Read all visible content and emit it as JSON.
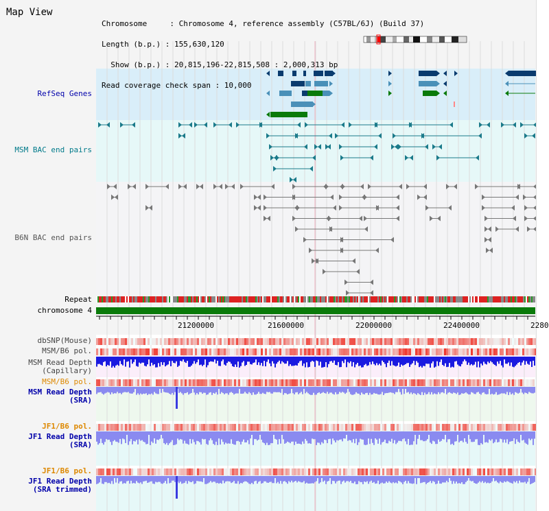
{
  "page_title": "Map View",
  "header": {
    "line1": "Chromosome     : Chromosome 4, reference assembly (C57BL/6J) (Build 37)",
    "line2": "Length (b.p.) : 155,630,120",
    "line3": "  Show (b.p.) : 20,815,196-22,815,508 : 2,000,313 bp",
    "line4": "Read coverage check span : 10,000"
  },
  "tracks": {
    "refseq": "RefSeq Genes",
    "msm_bac": "MSM BAC end pairs",
    "b6n_bac": "B6N BAC end pairs",
    "repeat": "Repeat",
    "chromosome": "chromosome 4",
    "dbsnp": "dbSNP(Mouse)",
    "msm_pol1": "MSM/B6 pol.",
    "msm_depth_cap_1": "MSM Read Depth",
    "msm_depth_cap_2": "(Capillary)",
    "msm_pol2": "MSM/B6 pol.",
    "msm_depth_sra_1": "MSM Read Depth",
    "msm_depth_sra_2": "(SRA)",
    "jf1_pol1": "JF1/B6 pol.",
    "jf1_depth_1": "JF1 Read Depth",
    "jf1_depth_2": "(SRA)",
    "jf1_pol2": "JF1/B6 pol.",
    "jf1_depth_trim_1": "JF1 Read Depth",
    "jf1_depth_trim_2": "(SRA trimmed)"
  },
  "axis": {
    "ticks": [
      "21200000",
      "21600000",
      "22000000",
      "22400000",
      "2280"
    ]
  },
  "colors": {
    "refseq_bg": "#d9eef9",
    "msm_bac_bg": "#e6f8f8",
    "b6n_bac_bg": "#f4f4f6",
    "gene_dark": "#0a3b6e",
    "gene_mid": "#4a90b8",
    "gene_green": "#0a7a0a",
    "msm_bac": "#1a7a8a",
    "b6n_bac": "#777777",
    "repeat_red": "#dd2222",
    "chrom_green": "#0a7a0a",
    "depth_blue": "#1a1ae0",
    "depth_light": "#8a8af0",
    "pol_red": "#ee3333",
    "label_blue": "#0000aa",
    "label_teal": "#007a8a",
    "label_orange": "#dd8800"
  }
}
